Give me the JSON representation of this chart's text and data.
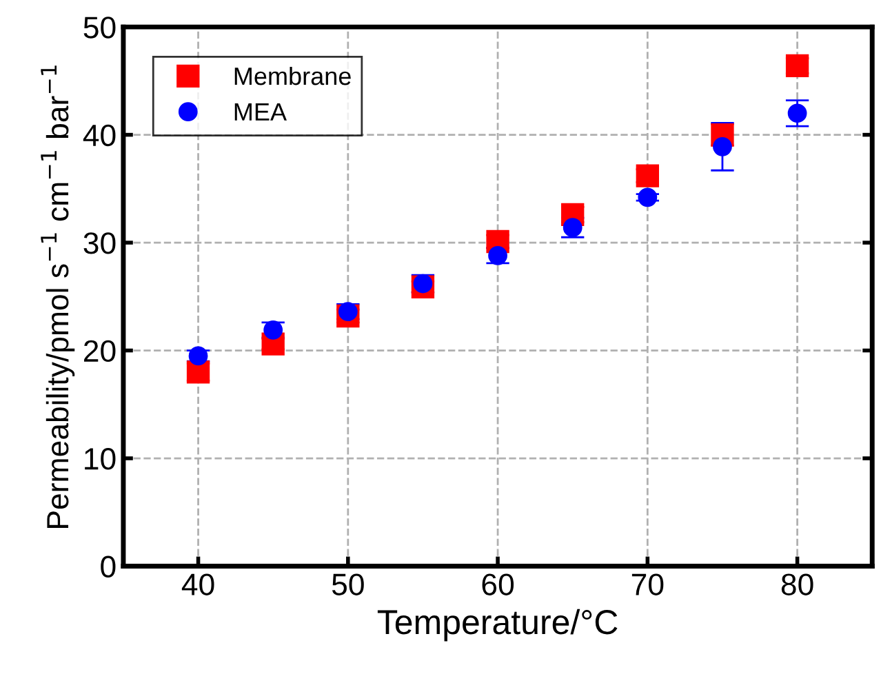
{
  "chart_data": {
    "type": "scatter",
    "xlabel": "Temperature/°C",
    "ylabel": "Permeability/pmol s$^{−1}$ cm$^{−1}$ bar$^{−1}$",
    "x": [
      40,
      45,
      50,
      55,
      60,
      65,
      70,
      75,
      80
    ],
    "series": [
      {
        "name": "Membrane",
        "color": "#ff0000",
        "marker": "square",
        "values": [
          18.0,
          20.6,
          23.2,
          25.9,
          30.1,
          32.6,
          36.2,
          40.0,
          46.4
        ],
        "errors": [
          0.8,
          0.5,
          0.6,
          0.5,
          0.6,
          0.7,
          0.6,
          1.0,
          0.7
        ]
      },
      {
        "name": "MEA",
        "color": "#0000ff",
        "marker": "circle",
        "values": [
          19.5,
          21.9,
          23.6,
          26.2,
          28.8,
          31.4,
          34.2,
          38.9,
          42.0
        ],
        "errors": [
          0.5,
          0.7,
          0.7,
          0.8,
          0.7,
          0.9,
          0.3,
          2.2,
          1.2
        ]
      }
    ],
    "xlim": [
      35,
      85
    ],
    "ylim": [
      0,
      50
    ],
    "xticks": [
      40,
      50,
      60,
      70,
      80
    ],
    "yticks": [
      0,
      10,
      20,
      30,
      40,
      50
    ],
    "grid": true,
    "legend": "top left"
  }
}
